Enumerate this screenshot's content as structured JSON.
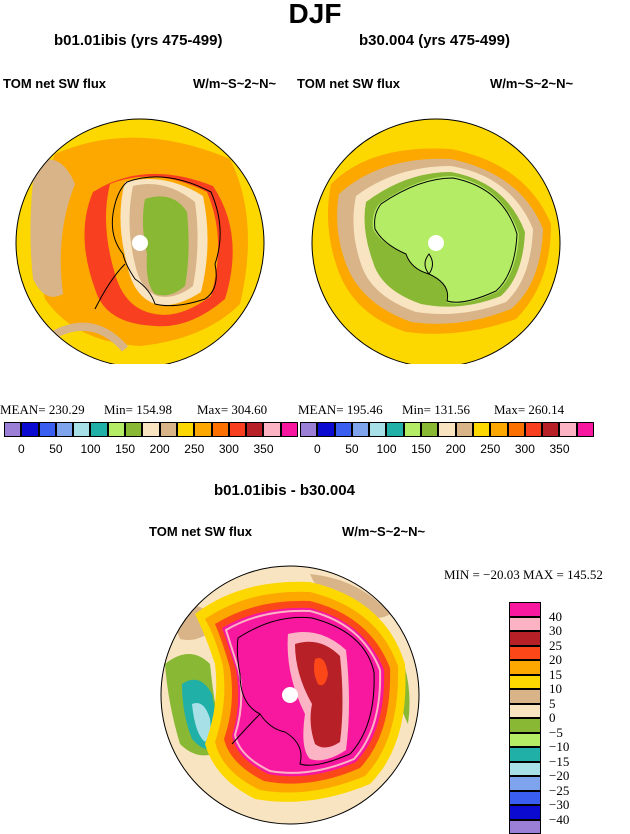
{
  "title": "DJF",
  "panels": [
    {
      "title": "b01.01ibis (yrs 475-499)",
      "left_label": "TOM net SW flux",
      "right_label": "W/m~S~2~N~",
      "stats": {
        "mean": "MEAN= 230.29",
        "min": "Min= 154.98",
        "max": "Max= 304.60"
      }
    },
    {
      "title": "b30.004 (yrs 475-499)",
      "left_label": "TOM net SW flux",
      "right_label": "W/m~S~2~N~",
      "stats": {
        "mean": "MEAN= 195.46",
        "min": "Min= 131.56",
        "max": "Max= 260.14"
      }
    },
    {
      "title": "b01.01ibis - b30.004",
      "left_label": "TOM net SW flux",
      "right_label": "W/m~S~2~N~",
      "stats": {
        "minmax": "MIN = −20.03  MAX = 145.52"
      }
    }
  ],
  "chart_data": [
    {
      "type": "heatmap",
      "projection": "south-polar-stereographic",
      "title": "b01.01ibis (yrs 475-499)",
      "variable": "TOM net SW flux",
      "units": "W/m~S~2~N~",
      "mean": 230.29,
      "min": 154.98,
      "max": 304.6,
      "colorbar": {
        "orientation": "horizontal",
        "tick_labels": [
          "0",
          "50",
          "100",
          "150",
          "200",
          "250",
          "300",
          "350"
        ],
        "colors": [
          "#9b7fd6",
          "#0a0ad0",
          "#3a5ef0",
          "#7ea4ee",
          "#a8e0e8",
          "#20b0a8",
          "#b4ec66",
          "#88b834",
          "#f8e4c0",
          "#d8b488",
          "#fcd800",
          "#fca800",
          "#fc7000",
          "#f84020",
          "#b82028",
          "#fcb4c4",
          "#f818a0"
        ]
      }
    },
    {
      "type": "heatmap",
      "projection": "south-polar-stereographic",
      "title": "b30.004 (yrs 475-499)",
      "variable": "TOM net SW flux",
      "units": "W/m~S~2~N~",
      "mean": 195.46,
      "min": 131.56,
      "max": 260.14,
      "colorbar": {
        "orientation": "horizontal",
        "tick_labels": [
          "0",
          "50",
          "100",
          "150",
          "200",
          "250",
          "300",
          "350"
        ],
        "colors": [
          "#9b7fd6",
          "#0a0ad0",
          "#3a5ef0",
          "#7ea4ee",
          "#a8e0e8",
          "#20b0a8",
          "#b4ec66",
          "#88b834",
          "#f8e4c0",
          "#d8b488",
          "#fcd800",
          "#fca800",
          "#fc7000",
          "#f84020",
          "#b82028",
          "#fcb4c4",
          "#f818a0"
        ]
      }
    },
    {
      "type": "heatmap",
      "projection": "south-polar-stereographic",
      "title": "b01.01ibis - b30.004",
      "variable": "TOM net SW flux",
      "units": "W/m~S~2~N~",
      "min": -20.03,
      "max": 145.52,
      "colorbar": {
        "orientation": "vertical",
        "tick_labels": [
          "40",
          "30",
          "25",
          "20",
          "15",
          "10",
          "5",
          "0",
          "−5",
          "−10",
          "−15",
          "−20",
          "−25",
          "−30",
          "−40"
        ],
        "colors": [
          "#f818a0",
          "#fcb4c4",
          "#b82028",
          "#fc4818",
          "#fca800",
          "#fcd800",
          "#d8b488",
          "#f8e4c0",
          "#88b834",
          "#b4ec66",
          "#20b0a8",
          "#a8e0e8",
          "#7ea4ee",
          "#3a5ef0",
          "#0a0ad0",
          "#9b7fd6"
        ]
      }
    }
  ]
}
